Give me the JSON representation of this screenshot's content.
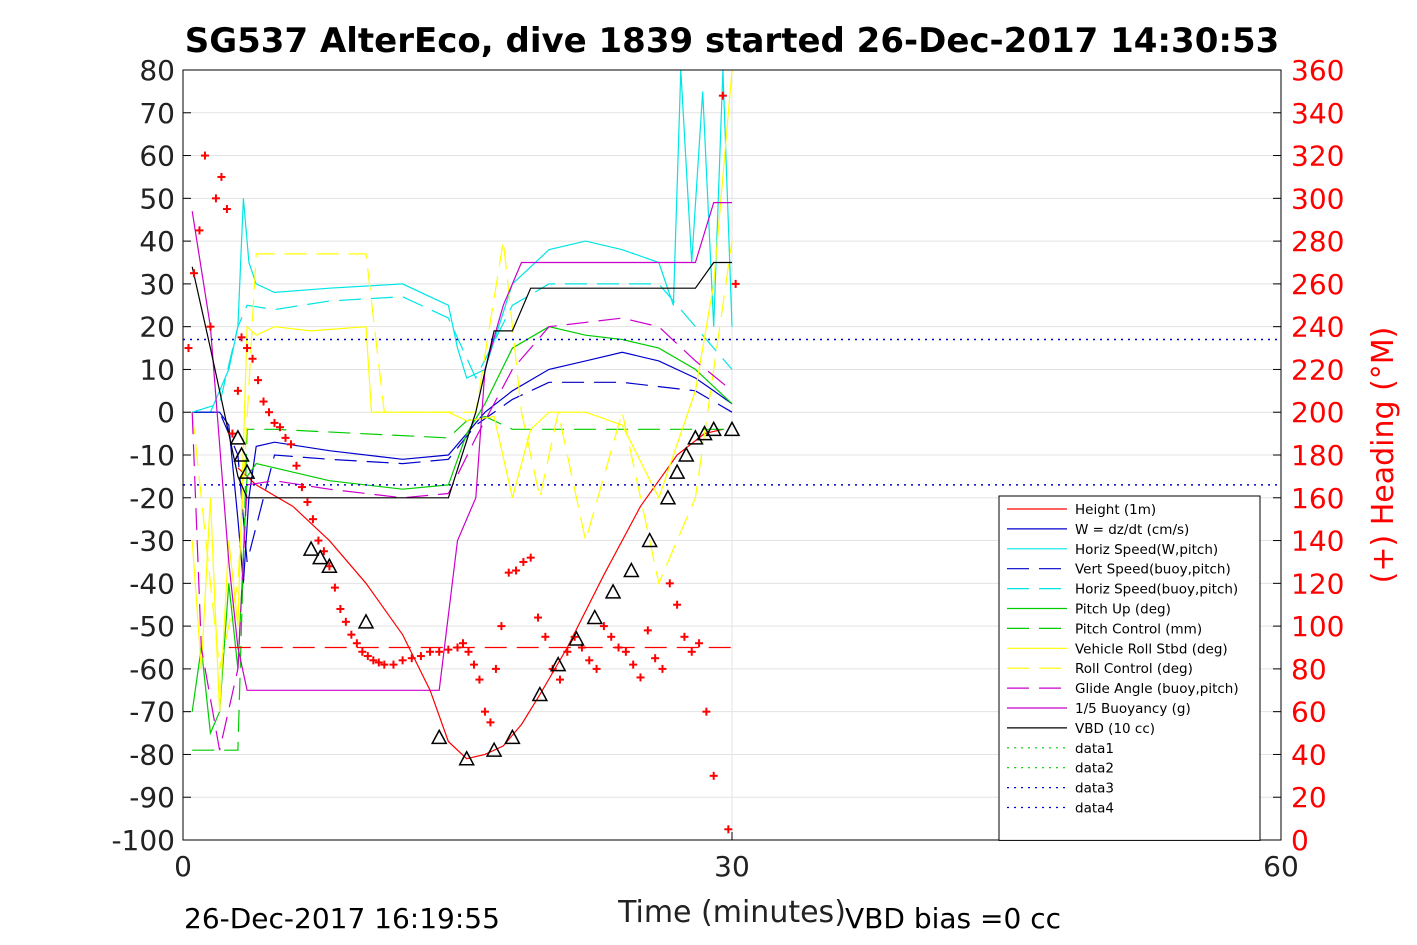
{
  "chart_data": {
    "type": "line",
    "title": "SG537 AlterEco, dive 1839 started 26-Dec-2017 14:30:53",
    "xlabel": "Time (minutes)",
    "ylabel_right": "(+) Heading (°M)",
    "xlim": [
      0,
      60
    ],
    "ylim": [
      -100,
      80
    ],
    "ylim_right": [
      0,
      360
    ],
    "xticks": [
      "0",
      "30",
      "60"
    ],
    "yticks": [
      "80",
      "70",
      "60",
      "50",
      "40",
      "30",
      "20",
      "10",
      "0",
      "-10",
      "-20",
      "-30",
      "-40",
      "-50",
      "-60",
      "-70",
      "-80",
      "-90",
      "-100"
    ],
    "yticks_right": [
      "360",
      "340",
      "320",
      "300",
      "280",
      "260",
      "240",
      "220",
      "200",
      "180",
      "160",
      "140",
      "120",
      "100",
      "80",
      "60",
      "40",
      "20",
      "0"
    ],
    "footer_left": "26-Dec-2017 16:19:55",
    "footer_right": "VBD bias =0 cc",
    "grid": true,
    "legend_position": "lower-right",
    "colors": {
      "red": "#ff0000",
      "blue": "#0000cc",
      "cyan": "#00e5e5",
      "green": "#00cc00",
      "yellow": "#ffff00",
      "magenta": "#cc00cc",
      "black": "#000000",
      "right_axis": "#ff0000"
    },
    "series": [
      {
        "name": "Height (1m)",
        "color": "#ff0000",
        "style": "solid",
        "x": [
          3,
          4,
          6,
          8,
          10,
          12,
          13.5,
          14.5,
          15.5,
          16.5,
          17.5,
          18.5,
          19.5,
          21,
          23,
          25,
          27,
          28.5,
          29.5
        ],
        "y": [
          -13,
          -17,
          -22,
          -30,
          -40,
          -52,
          -65,
          -77,
          -81,
          -80,
          -78,
          -73,
          -66,
          -55,
          -38,
          -22,
          -10,
          -5,
          -4
        ]
      },
      {
        "name": "W = dz/dt (cm/s)",
        "color": "#0000cc",
        "style": "solid",
        "x": [
          0.5,
          1,
          2,
          2.5,
          3,
          3.3,
          3.6,
          4,
          5,
          8,
          12,
          14.5,
          15.5,
          16.5,
          18,
          20,
          22,
          24,
          26,
          28,
          29,
          30
        ],
        "y": [
          0,
          0,
          0,
          -3,
          -25,
          -40,
          -20,
          -8,
          -7,
          -9,
          -11,
          -10,
          -5,
          0,
          5,
          10,
          12,
          14,
          12,
          8,
          5,
          2
        ]
      },
      {
        "name": "Horiz Speed(W,pitch)",
        "color": "#00e5e5",
        "style": "solid",
        "x": [
          0.5,
          1.5,
          2.5,
          3,
          3.3,
          3.6,
          4,
          5,
          8,
          12,
          14.5,
          15,
          15.5,
          16.5,
          18,
          20,
          22,
          24,
          26,
          26.8,
          27.2,
          27.8,
          28.4,
          29,
          29.5,
          30
        ],
        "y": [
          0,
          0,
          10,
          20,
          50,
          35,
          30,
          28,
          29,
          30,
          25,
          15,
          8,
          10,
          30,
          38,
          40,
          38,
          35,
          25,
          80,
          35,
          75,
          20,
          80,
          20
        ]
      },
      {
        "name": "Vert Speed(buoy,pitch)",
        "color": "#0000cc",
        "style": "dash",
        "x": [
          0.5,
          2,
          3,
          3.5,
          5,
          8,
          12,
          14.5,
          16,
          18,
          20,
          24,
          26,
          28,
          30
        ],
        "y": [
          0,
          0,
          -10,
          -35,
          -10,
          -11,
          -12,
          -11,
          -3,
          3,
          7,
          7,
          6,
          5,
          0
        ]
      },
      {
        "name": "Horiz Speed(buoy,pitch)",
        "color": "#00e5e5",
        "style": "dash",
        "x": [
          0.5,
          2,
          3,
          3.5,
          5,
          8,
          12,
          14.5,
          16,
          18,
          20,
          24,
          26,
          28,
          30
        ],
        "y": [
          0,
          2,
          20,
          25,
          24,
          26,
          27,
          22,
          8,
          25,
          30,
          30,
          30,
          20,
          10
        ]
      },
      {
        "name": "Pitch Up (deg)",
        "color": "#00cc00",
        "style": "solid",
        "x": [
          0.5,
          1,
          1.5,
          2,
          2.5,
          3,
          3.5,
          4,
          5,
          8,
          12,
          14.5,
          15.5,
          16.5,
          18,
          20,
          22,
          24,
          26,
          28,
          30
        ],
        "y": [
          -70,
          -55,
          -75,
          -70,
          -40,
          -60,
          -15,
          -12,
          -13,
          -16,
          -18,
          -17,
          -5,
          2,
          15,
          20,
          18,
          17,
          15,
          10,
          2
        ]
      },
      {
        "name": "Pitch Control (mm)",
        "color": "#00cc00",
        "style": "dash",
        "x": [
          0.5,
          2,
          3,
          3.5,
          5,
          14.5,
          15.5,
          16.5,
          18,
          28,
          30
        ],
        "y": [
          -79,
          -79,
          -79,
          -4,
          -4,
          -6,
          -2,
          -1,
          -4,
          -4,
          -4
        ]
      },
      {
        "name": "Vehicle Roll Stbd (deg)",
        "color": "#ffff00",
        "style": "solid",
        "x": [
          0.5,
          1,
          1.5,
          2,
          2.5,
          3,
          3.5,
          4,
          5,
          7,
          10,
          10.3,
          11,
          14.5,
          15.5,
          17,
          18,
          19,
          20,
          22,
          24,
          26,
          28,
          29,
          30
        ],
        "y": [
          -30,
          -60,
          -20,
          -70,
          -30,
          -50,
          20,
          18,
          20,
          19,
          20,
          0,
          0,
          0,
          -2,
          -1,
          -20,
          -4,
          0,
          0,
          -3,
          -20,
          5,
          30,
          80
        ]
      },
      {
        "name": "Roll Control (deg)",
        "color": "#ffff00",
        "style": "dash",
        "x": [
          0.5,
          2,
          3,
          4,
          5,
          10,
          11,
          14.5,
          16,
          17.5,
          18.5,
          19.5,
          20.5,
          22,
          24,
          26,
          28,
          30
        ],
        "y": [
          0,
          -60,
          -40,
          37,
          37,
          37,
          0,
          0,
          0,
          40,
          0,
          -20,
          0,
          -30,
          0,
          -40,
          -20,
          40
        ]
      },
      {
        "name": "Glide Angle (buoy,pitch)",
        "color": "#cc00cc",
        "style": "dash",
        "x": [
          0.5,
          1,
          2,
          3,
          3.5,
          5,
          8,
          12,
          14.5,
          16,
          18,
          20,
          24,
          26,
          28,
          30
        ],
        "y": [
          0,
          -55,
          -79,
          -60,
          -17,
          -16,
          -18,
          -20,
          -19,
          -6,
          10,
          20,
          22,
          20,
          12,
          5
        ]
      },
      {
        "name": "1/5 Buoyancy (g)",
        "color": "#cc00cc",
        "style": "solid",
        "x": [
          0.5,
          1.5,
          2.5,
          3,
          3.5,
          5,
          10,
          14,
          15,
          16,
          16.5,
          17.5,
          18.5,
          22,
          26,
          28,
          29,
          30
        ],
        "y": [
          47,
          20,
          -35,
          -55,
          -65,
          -65,
          -65,
          -65,
          -30,
          -20,
          10,
          25,
          35,
          35,
          35,
          35,
          49,
          49
        ]
      },
      {
        "name": "VBD (10 cc)",
        "color": "#000000",
        "style": "solid",
        "x": [
          0.5,
          1.5,
          2.5,
          3,
          3.5,
          5,
          10,
          14.5,
          16,
          17,
          18,
          19,
          28,
          29,
          30
        ],
        "y": [
          34,
          15,
          -5,
          -15,
          -20,
          -20,
          -20,
          -20,
          0,
          19,
          19,
          29,
          29,
          35,
          35
        ]
      },
      {
        "name": "data1",
        "color": "#00cc00",
        "style": "dot",
        "x": [],
        "y": []
      },
      {
        "name": "data2",
        "color": "#00cc00",
        "style": "dot",
        "x": [],
        "y": []
      },
      {
        "name": "data3",
        "color": "#0000cc",
        "style": "dot",
        "x": [
          0,
          60
        ],
        "y": [
          17,
          17
        ]
      },
      {
        "name": "data4",
        "color": "#0000cc",
        "style": "dot",
        "x": [
          0,
          60
        ],
        "y": [
          -17,
          -17
        ]
      }
    ],
    "reference_lines": [
      {
        "color": "#ff0000",
        "style": "dash",
        "y": -55,
        "x": [
          2.5,
          30
        ]
      }
    ],
    "heading_points": {
      "color": "#ff0000",
      "marker": "plus",
      "axis": "right",
      "x": [
        0.3,
        0.6,
        0.9,
        1.2,
        1.5,
        1.8,
        2.1,
        2.4,
        2.7,
        3.0,
        3.2,
        3.5,
        3.8,
        4.1,
        4.4,
        4.7,
        5.0,
        5.3,
        5.6,
        5.9,
        6.2,
        6.5,
        6.8,
        7.1,
        7.4,
        7.7,
        8.0,
        8.3,
        8.6,
        8.9,
        9.2,
        9.5,
        9.8,
        10.1,
        10.4,
        10.7,
        11.0,
        11.5,
        12.0,
        12.5,
        13.0,
        13.5,
        14.0,
        14.5,
        15.0,
        15.3,
        15.6,
        15.9,
        16.2,
        16.5,
        16.8,
        17.1,
        17.4,
        17.8,
        18.2,
        18.6,
        19.0,
        19.4,
        19.8,
        20.2,
        20.6,
        21.0,
        21.4,
        21.8,
        22.2,
        22.6,
        23.0,
        23.4,
        23.8,
        24.2,
        24.6,
        25.0,
        25.4,
        25.8,
        26.2,
        26.6,
        27.0,
        27.4,
        27.8,
        28.2,
        28.6,
        29.0,
        29.5,
        29.8,
        30.2
      ],
      "y": [
        230,
        265,
        285,
        320,
        240,
        300,
        310,
        295,
        190,
        210,
        235,
        230,
        225,
        215,
        205,
        200,
        195,
        193,
        188,
        185,
        175,
        165,
        158,
        150,
        140,
        135,
        128,
        118,
        108,
        102,
        96,
        92,
        88,
        86,
        84,
        83,
        82,
        82,
        84,
        85,
        86,
        88,
        88,
        89,
        90,
        92,
        88,
        82,
        75,
        60,
        55,
        80,
        100,
        125,
        126,
        130,
        132,
        104,
        95,
        80,
        75,
        88,
        95,
        90,
        84,
        80,
        100,
        95,
        90,
        88,
        82,
        76,
        98,
        85,
        80,
        120,
        110,
        95,
        88,
        92,
        60,
        30,
        348,
        5,
        260
      ]
    },
    "markers": {
      "color": "#000000",
      "marker": "triangle",
      "x": [
        3,
        3.2,
        3.5,
        7,
        7.5,
        8,
        10,
        14,
        15.5,
        17,
        18,
        19.5,
        20.5,
        21.5,
        22.5,
        23.5,
        24.5,
        25.5,
        26.5,
        27,
        27.5,
        28,
        28.5,
        29,
        30
      ],
      "y": [
        -6,
        -10,
        -14,
        -32,
        -34,
        -36,
        -49,
        -76,
        -81,
        -79,
        -76,
        -66,
        -59,
        -53,
        -48,
        -42,
        -37,
        -30,
        -20,
        -14,
        -10,
        -6,
        -5,
        -4,
        -4
      ]
    }
  }
}
